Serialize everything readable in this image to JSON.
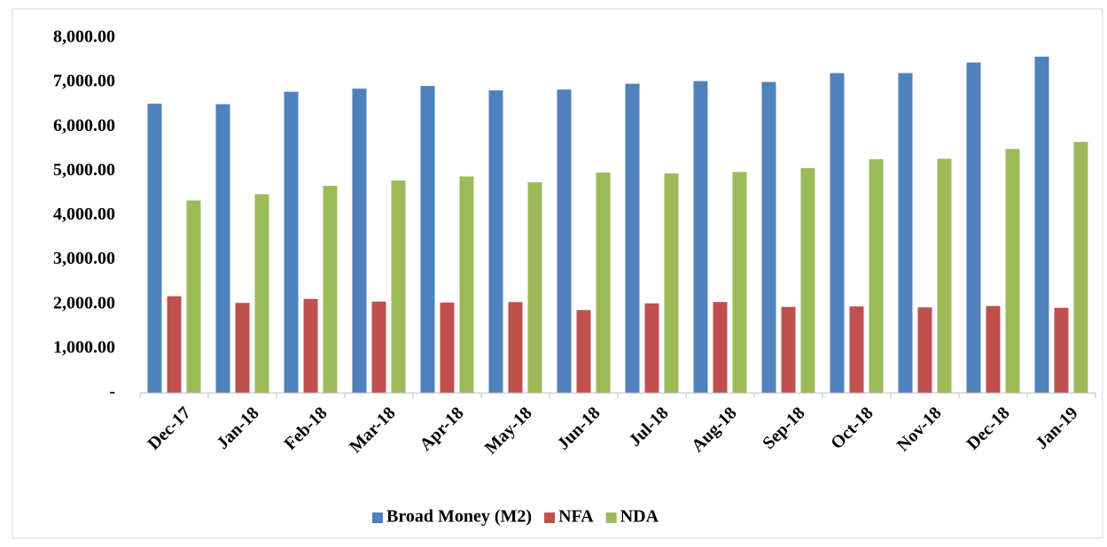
{
  "chart_data": {
    "type": "bar",
    "categories": [
      "Dec-17",
      "Jan-18",
      "Feb-18",
      "Mar-18",
      "Apr-18",
      "May-18",
      "Jun-18",
      "Jul-18",
      "Aug-18",
      "Sep-18",
      "Oct-18",
      "Nov-18",
      "Dec-18",
      "Jan-19"
    ],
    "series": [
      {
        "name": "Broad Money (M2)",
        "color": "#4f81bd",
        "values": [
          6520,
          6510,
          6790,
          6860,
          6920,
          6820,
          6840,
          6970,
          7030,
          7010,
          7210,
          7210,
          7450,
          7580
        ]
      },
      {
        "name": "NFA",
        "color": "#c0504d",
        "values": [
          2180,
          2030,
          2120,
          2060,
          2040,
          2050,
          1870,
          2020,
          2050,
          1940,
          1950,
          1930,
          1960,
          1920
        ]
      },
      {
        "name": "NDA",
        "color": "#9bbb59",
        "values": [
          4340,
          4480,
          4670,
          4790,
          4880,
          4750,
          4970,
          4950,
          4980,
          5070,
          5270,
          5280,
          5500,
          5660
        ]
      }
    ],
    "ylim": [
      0,
      8000
    ],
    "yticks": [
      {
        "value": 0,
        "label": "-"
      },
      {
        "value": 1000,
        "label": "1,000.00"
      },
      {
        "value": 2000,
        "label": "2,000.00"
      },
      {
        "value": 3000,
        "label": "3,000.00"
      },
      {
        "value": 4000,
        "label": "4,000.00"
      },
      {
        "value": 5000,
        "label": "5,000.00"
      },
      {
        "value": 6000,
        "label": "6,000.00"
      },
      {
        "value": 7000,
        "label": "7,000.00"
      },
      {
        "value": 8000,
        "label": "8,000.00"
      }
    ],
    "grid": false,
    "legend": "bottom"
  }
}
